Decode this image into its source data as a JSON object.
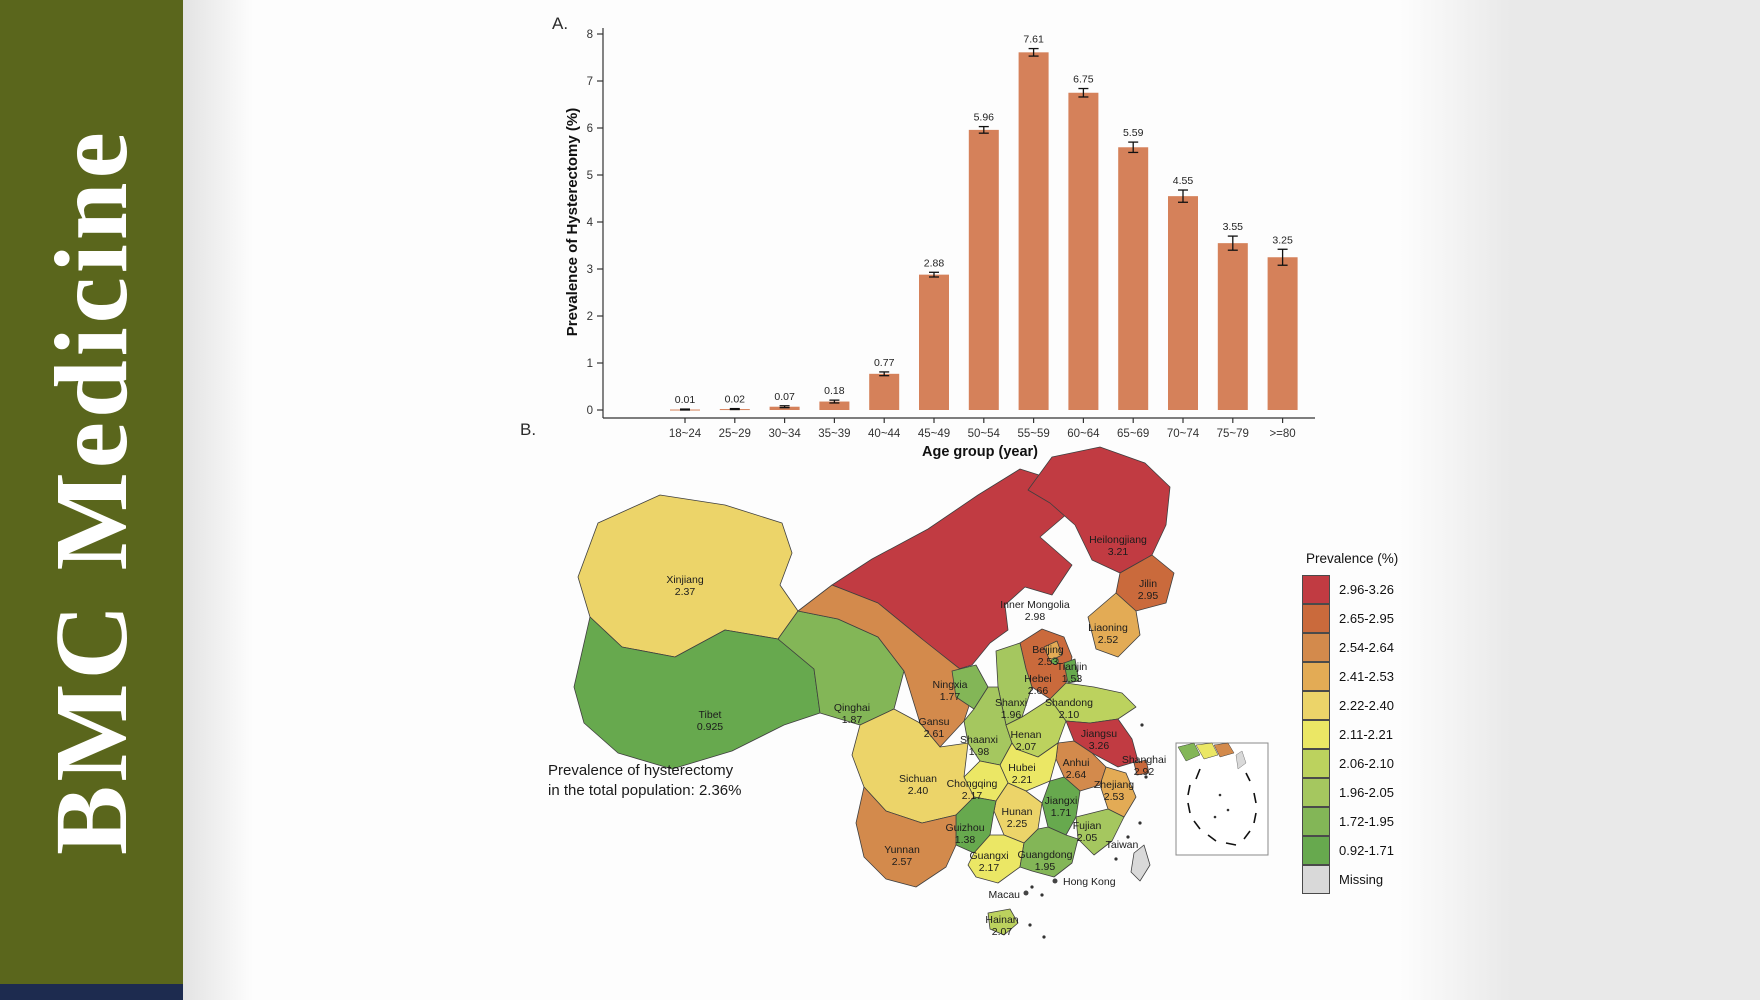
{
  "sidebar": {
    "journal": "BMC Medicine",
    "bg_color": "#5a661c",
    "bottom_bar_color": "#1d2b4f"
  },
  "panels": {
    "a_label": "A.",
    "b_label": "B."
  },
  "chart_data": {
    "type": "bar",
    "title": "",
    "xlabel": "Age group (year)",
    "ylabel": "Prevalence of Hysterectomy (%)",
    "ylim": [
      0,
      8
    ],
    "yticks": [
      0,
      1,
      2,
      3,
      4,
      5,
      6,
      7,
      8
    ],
    "grid": false,
    "legend_position": "none",
    "bar_color": "#d5815a",
    "error_bar_color": "#111111",
    "categories": [
      "18~24",
      "25~29",
      "30~34",
      "35~39",
      "40~44",
      "45~49",
      "50~54",
      "55~59",
      "60~64",
      "65~69",
      "70~74",
      "75~79",
      ">=80"
    ],
    "values": [
      0.01,
      0.02,
      0.07,
      0.18,
      0.77,
      2.88,
      5.96,
      7.61,
      6.75,
      5.59,
      4.55,
      3.55,
      3.25
    ],
    "errors": [
      0.01,
      0.01,
      0.02,
      0.03,
      0.04,
      0.05,
      0.07,
      0.08,
      0.09,
      0.11,
      0.13,
      0.15,
      0.17
    ],
    "value_labels": [
      "0.01",
      "0.02",
      "0.07",
      "0.18",
      "0.77",
      "2.88",
      "5.96",
      "7.61",
      "6.75",
      "5.59",
      "4.55",
      "3.55",
      "3.25"
    ]
  },
  "map": {
    "type": "choropleth",
    "legend_title": "Prevalence (%)",
    "bins": [
      {
        "range": "2.96-3.26",
        "color": "#c13b42"
      },
      {
        "range": "2.65-2.95",
        "color": "#ca6a3c"
      },
      {
        "range": "2.54-2.64",
        "color": "#d38a4c"
      },
      {
        "range": "2.41-2.53",
        "color": "#e3ab55"
      },
      {
        "range": "2.22-2.40",
        "color": "#ecd469"
      },
      {
        "range": "2.11-2.21",
        "color": "#ebe765"
      },
      {
        "range": "2.06-2.10",
        "color": "#bcd25e"
      },
      {
        "range": "1.96-2.05",
        "color": "#a5c75f"
      },
      {
        "range": "1.72-1.95",
        "color": "#83b657"
      },
      {
        "range": "0.92-1.71",
        "color": "#67a94e"
      },
      {
        "range": "Missing",
        "color": "#d9d9d9"
      }
    ],
    "note_line1": "Prevalence of hysterectomy",
    "note_line2": "in the total population: 2.36%",
    "provinces": [
      {
        "name": "Xinjiang",
        "value": "2.37",
        "bin": 4
      },
      {
        "name": "Tibet",
        "value": "0.925",
        "bin": 9
      },
      {
        "name": "Qinghai",
        "value": "1.87",
        "bin": 8
      },
      {
        "name": "Inner Mongolia",
        "value": "2.98",
        "bin": 0
      },
      {
        "name": "Gansu",
        "value": "2.61",
        "bin": 2
      },
      {
        "name": "Ningxia",
        "value": "1.77",
        "bin": 8
      },
      {
        "name": "Heilongjiang",
        "value": "3.21",
        "bin": 0
      },
      {
        "name": "Jilin",
        "value": "2.95",
        "bin": 1
      },
      {
        "name": "Liaoning",
        "value": "2.52",
        "bin": 3
      },
      {
        "name": "Hebei",
        "value": "2.66",
        "bin": 1
      },
      {
        "name": "Beijing",
        "value": "2.53",
        "bin": 3
      },
      {
        "name": "Tianjin",
        "value": "1.53",
        "bin": 9
      },
      {
        "name": "Shanxi",
        "value": "1.96",
        "bin": 7
      },
      {
        "name": "Shandong",
        "value": "2.10",
        "bin": 6
      },
      {
        "name": "Shaanxi",
        "value": "1.98",
        "bin": 7
      },
      {
        "name": "Henan",
        "value": "2.07",
        "bin": 6
      },
      {
        "name": "Jiangsu",
        "value": "3.26",
        "bin": 0
      },
      {
        "name": "Shanghai",
        "value": "2.92",
        "bin": 1
      },
      {
        "name": "Anhui",
        "value": "2.64",
        "bin": 2
      },
      {
        "name": "Hubei",
        "value": "2.21",
        "bin": 5
      },
      {
        "name": "Chongqing",
        "value": "2.17",
        "bin": 5
      },
      {
        "name": "Sichuan",
        "value": "2.40",
        "bin": 4
      },
      {
        "name": "Zhejiang",
        "value": "2.53",
        "bin": 3
      },
      {
        "name": "Jiangxi",
        "value": "1.71",
        "bin": 9
      },
      {
        "name": "Hunan",
        "value": "2.25",
        "bin": 4
      },
      {
        "name": "Guizhou",
        "value": "1.38",
        "bin": 9
      },
      {
        "name": "Fujian",
        "value": "2.05",
        "bin": 7
      },
      {
        "name": "Yunnan",
        "value": "2.57",
        "bin": 2
      },
      {
        "name": "Guangxi",
        "value": "2.17",
        "bin": 5
      },
      {
        "name": "Guangdong",
        "value": "1.95",
        "bin": 8
      },
      {
        "name": "Hainan",
        "value": "2.07",
        "bin": 6
      },
      {
        "name": "Taiwan",
        "value": "",
        "bin": 10
      },
      {
        "name": "Hong Kong",
        "value": "",
        "bin": null
      },
      {
        "name": "Macau",
        "value": "",
        "bin": null
      }
    ]
  }
}
